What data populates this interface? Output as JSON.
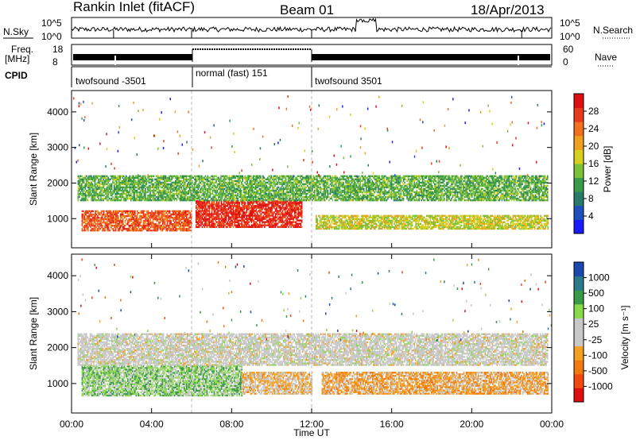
{
  "header": {
    "station": "Rankin Inlet (fitACF)",
    "beam": "Beam 01",
    "date": "18/Apr/2013"
  },
  "left_labels": {
    "nsky": "N.Sky",
    "freq": "Freq.",
    "freq_unit": "[MHz]",
    "cpid": "CPID"
  },
  "right_labels": {
    "nsearch": "N.Search",
    "nave": "Nave"
  },
  "nsky_ticks": {
    "left_top": "10^5",
    "left_bottom": "10^0",
    "right_top": "10^5",
    "right_bottom": "10^0"
  },
  "freq_ticks": {
    "left_top": "18",
    "left_bottom": "8",
    "right_top": "60",
    "right_bottom": "0"
  },
  "cpid_segments": [
    {
      "label": "twofsound -3501",
      "start_hour": 0,
      "end_hour": 6
    },
    {
      "label": "normal (fast) 151",
      "start_hour": 6,
      "end_hour": 12
    },
    {
      "label": "twofsound 3501",
      "start_hour": 12,
      "end_hour": 24
    }
  ],
  "x_axis": {
    "title": "Time UT",
    "tick_labels": [
      "00:00",
      "04:00",
      "08:00",
      "12:00",
      "16:00",
      "20:00",
      "00:00"
    ]
  },
  "colors": {
    "power": [
      "#1a1aff",
      "#1f4fbf",
      "#2a7a6a",
      "#3a9a4a",
      "#7ac23a",
      "#d8d020",
      "#f0a020",
      "#f07020",
      "#e83a1a",
      "#e01010"
    ],
    "velocity": [
      "#e01010",
      "#f04a10",
      "#f07a10",
      "#f5a020",
      "#c8c8c8",
      "#c8c8c8",
      "#8bd84b",
      "#3a9a4a",
      "#2a7a8a",
      "#1a4ab0"
    ]
  },
  "chart_data": [
    {
      "type": "heatmap",
      "title": "Power",
      "xlabel": "Time UT",
      "ylabel": "Slant Range [km]",
      "xlim": [
        0,
        24
      ],
      "ylim": [
        180,
        4600
      ],
      "y_ticks": [
        "1000",
        "2000",
        "3000",
        "4000"
      ],
      "colorbar": {
        "label": "Power [dB]",
        "ticks": [
          "4",
          "8",
          "12",
          "16",
          "20",
          "24",
          "28"
        ],
        "range": [
          0,
          30
        ]
      },
      "bands": [
        {
          "hour_start": 0.5,
          "hour_end": 6.0,
          "range_low": 650,
          "range_high": 1200,
          "value": 24
        },
        {
          "hour_start": 6.2,
          "hour_end": 11.5,
          "range_low": 750,
          "range_high": 1500,
          "value": 27
        },
        {
          "hour_start": 12.2,
          "hour_end": 23.8,
          "range_low": 700,
          "range_high": 1100,
          "value": 16
        },
        {
          "hour_start": 0.3,
          "hour_end": 23.8,
          "range_low": 1500,
          "range_high": 2200,
          "value": 12
        }
      ]
    },
    {
      "type": "heatmap",
      "title": "Velocity",
      "xlabel": "Time UT",
      "ylabel": "Slant Range [km]",
      "xlim": [
        0,
        24
      ],
      "ylim": [
        180,
        4600
      ],
      "y_ticks": [
        "1000",
        "2000",
        "3000",
        "4000"
      ],
      "colorbar": {
        "label": "Velocity [m s⁻¹]",
        "ticks": [
          "1000",
          "500",
          "100",
          "25",
          "-25",
          "-100",
          "-500",
          "-1000"
        ],
        "range": [
          -1000,
          1000
        ]
      },
      "bands": [
        {
          "hour_start": 0.5,
          "hour_end": 8.5,
          "range_low": 650,
          "range_high": 1500,
          "value": 300
        },
        {
          "hour_start": 8.5,
          "hour_end": 12.0,
          "range_low": 700,
          "range_high": 1300,
          "value": -200
        },
        {
          "hour_start": 12.5,
          "hour_end": 23.8,
          "range_low": 700,
          "range_high": 1300,
          "value": -300
        },
        {
          "hour_start": 0.3,
          "hour_end": 23.8,
          "range_low": 1500,
          "range_high": 2400,
          "value": 0
        }
      ]
    }
  ]
}
